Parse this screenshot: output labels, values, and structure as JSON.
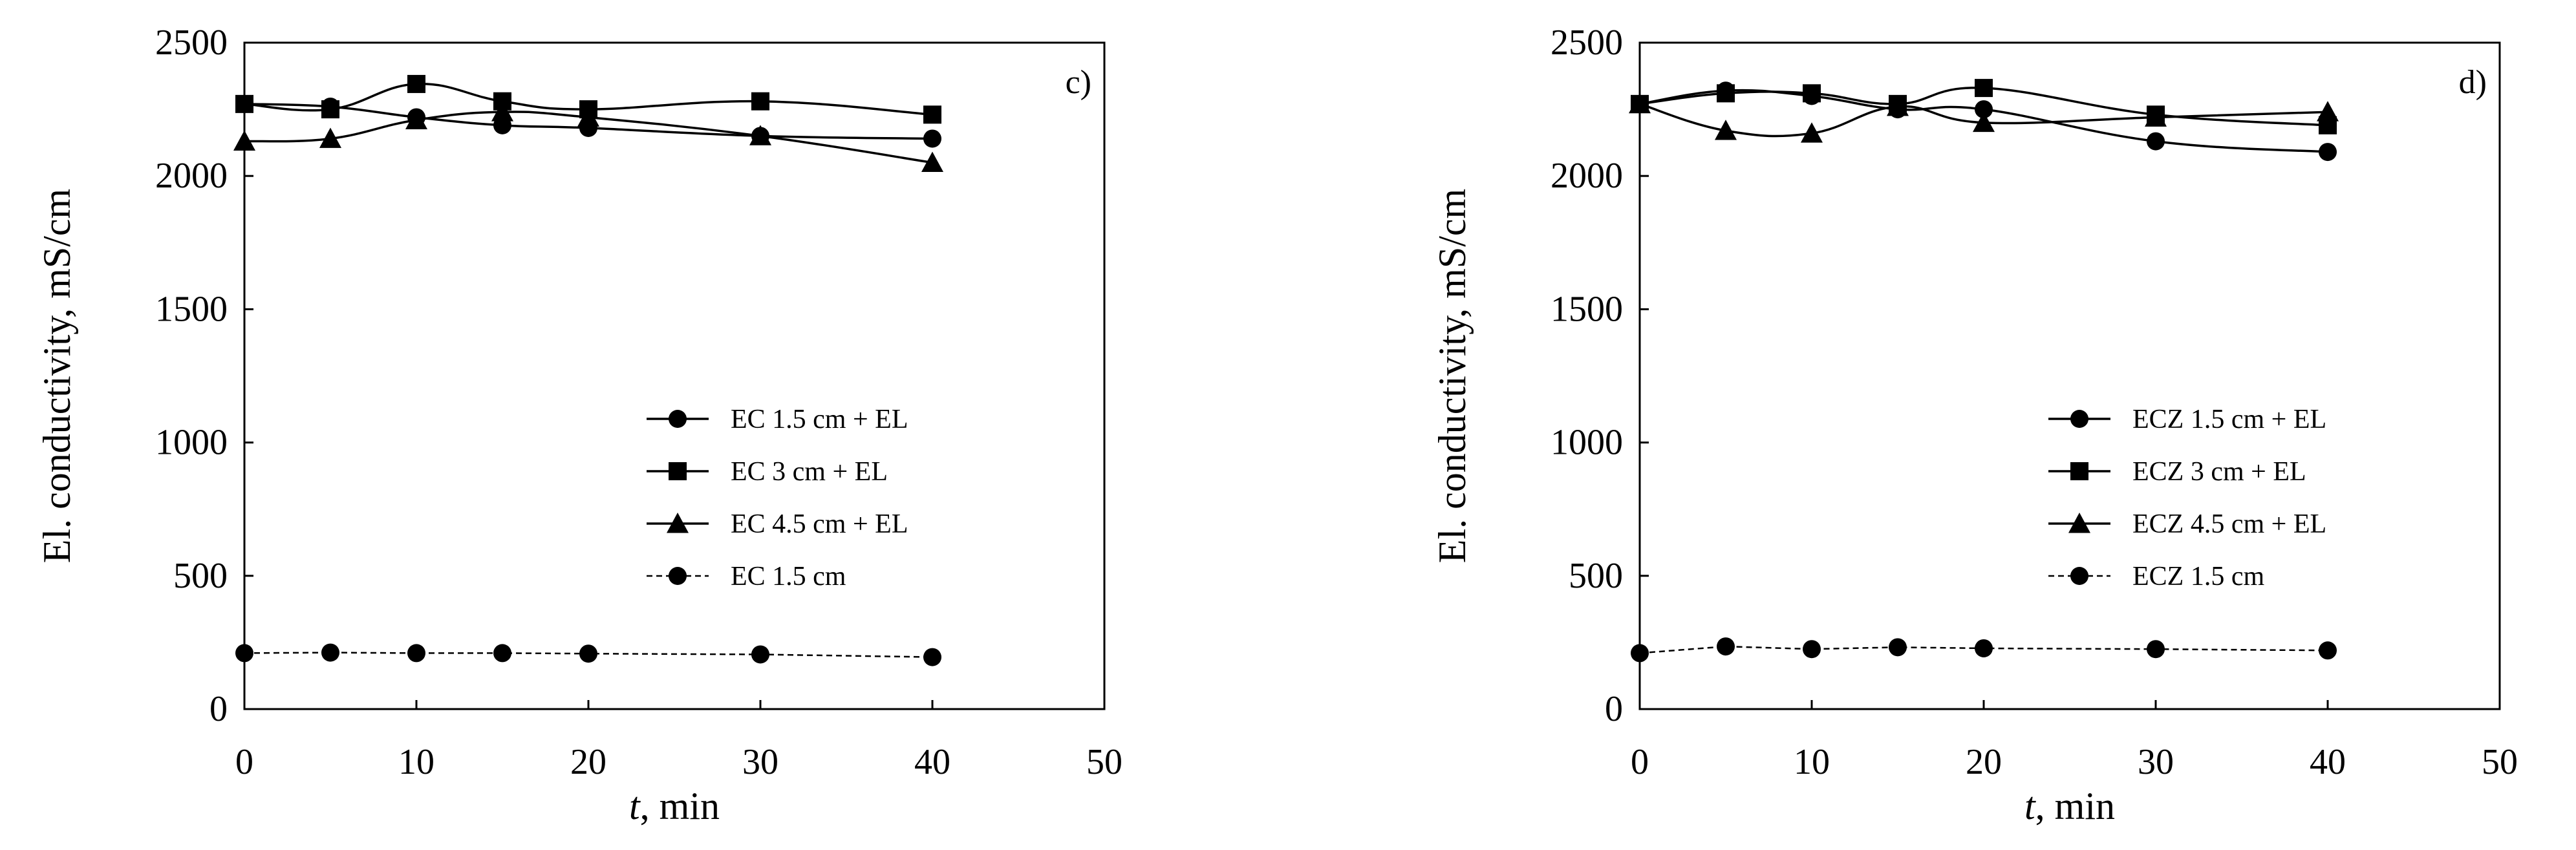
{
  "chart_data": [
    {
      "type": "line",
      "panel_label": "c)",
      "xlabel_var": "t",
      "xlabel_unit": ", min",
      "ylabel": "El. conductivity, mS/cm",
      "xlim": [
        0,
        50
      ],
      "ylim": [
        0,
        2500
      ],
      "xticks": [
        0,
        10,
        20,
        30,
        40,
        50
      ],
      "yticks": [
        0,
        500,
        1000,
        1500,
        2000,
        2500
      ],
      "grid": false,
      "legend_position": "center-right",
      "series": [
        {
          "name": "EC 1.5 cm + EL",
          "marker": "circle",
          "dash": "solid",
          "smooth": true,
          "x": [
            0,
            5,
            10,
            15,
            20,
            30,
            40
          ],
          "y": [
            2270,
            2260,
            2220,
            2190,
            2180,
            2150,
            2140
          ]
        },
        {
          "name": "EC 3 cm + EL",
          "marker": "square",
          "dash": "solid",
          "smooth": true,
          "x": [
            0,
            5,
            10,
            15,
            20,
            30,
            40
          ],
          "y": [
            2270,
            2250,
            2345,
            2280,
            2250,
            2280,
            2230
          ]
        },
        {
          "name": "EC 4.5 cm + EL",
          "marker": "triangle",
          "dash": "solid",
          "smooth": true,
          "x": [
            0,
            5,
            10,
            15,
            20,
            30,
            40
          ],
          "y": [
            2130,
            2140,
            2210,
            2240,
            2220,
            2150,
            2050
          ]
        },
        {
          "name": "EC 1.5 cm",
          "marker": "circle",
          "dash": "dashed",
          "smooth": false,
          "x": [
            0,
            5,
            10,
            15,
            20,
            30,
            40
          ],
          "y": [
            210,
            212,
            210,
            210,
            208,
            205,
            195
          ]
        }
      ]
    },
    {
      "type": "line",
      "panel_label": "d)",
      "xlabel_var": "t",
      "xlabel_unit": ", min",
      "ylabel": "El. conductivity, mS/cm",
      "xlim": [
        0,
        50
      ],
      "ylim": [
        0,
        2500
      ],
      "xticks": [
        0,
        10,
        20,
        30,
        40,
        50
      ],
      "yticks": [
        0,
        500,
        1000,
        1500,
        2000,
        2500
      ],
      "grid": false,
      "legend_position": "center-right",
      "series": [
        {
          "name": "ECZ 1.5 cm + EL",
          "marker": "circle",
          "dash": "solid",
          "smooth": true,
          "x": [
            0,
            5,
            10,
            15,
            20,
            30,
            40
          ],
          "y": [
            2270,
            2320,
            2300,
            2250,
            2250,
            2130,
            2090
          ]
        },
        {
          "name": "ECZ 3 cm + EL",
          "marker": "square",
          "dash": "solid",
          "smooth": true,
          "x": [
            0,
            5,
            10,
            15,
            20,
            30,
            40
          ],
          "y": [
            2270,
            2310,
            2310,
            2270,
            2330,
            2230,
            2190
          ]
        },
        {
          "name": "ECZ 4.5 cm + EL",
          "marker": "triangle",
          "dash": "solid",
          "smooth": true,
          "x": [
            0,
            5,
            10,
            15,
            20,
            30,
            40
          ],
          "y": [
            2270,
            2170,
            2160,
            2260,
            2200,
            2220,
            2240
          ]
        },
        {
          "name": "ECZ 1.5 cm",
          "marker": "circle",
          "dash": "dashed",
          "smooth": false,
          "x": [
            0,
            5,
            10,
            15,
            20,
            30,
            40
          ],
          "y": [
            210,
            235,
            225,
            232,
            228,
            225,
            220
          ]
        }
      ]
    }
  ]
}
